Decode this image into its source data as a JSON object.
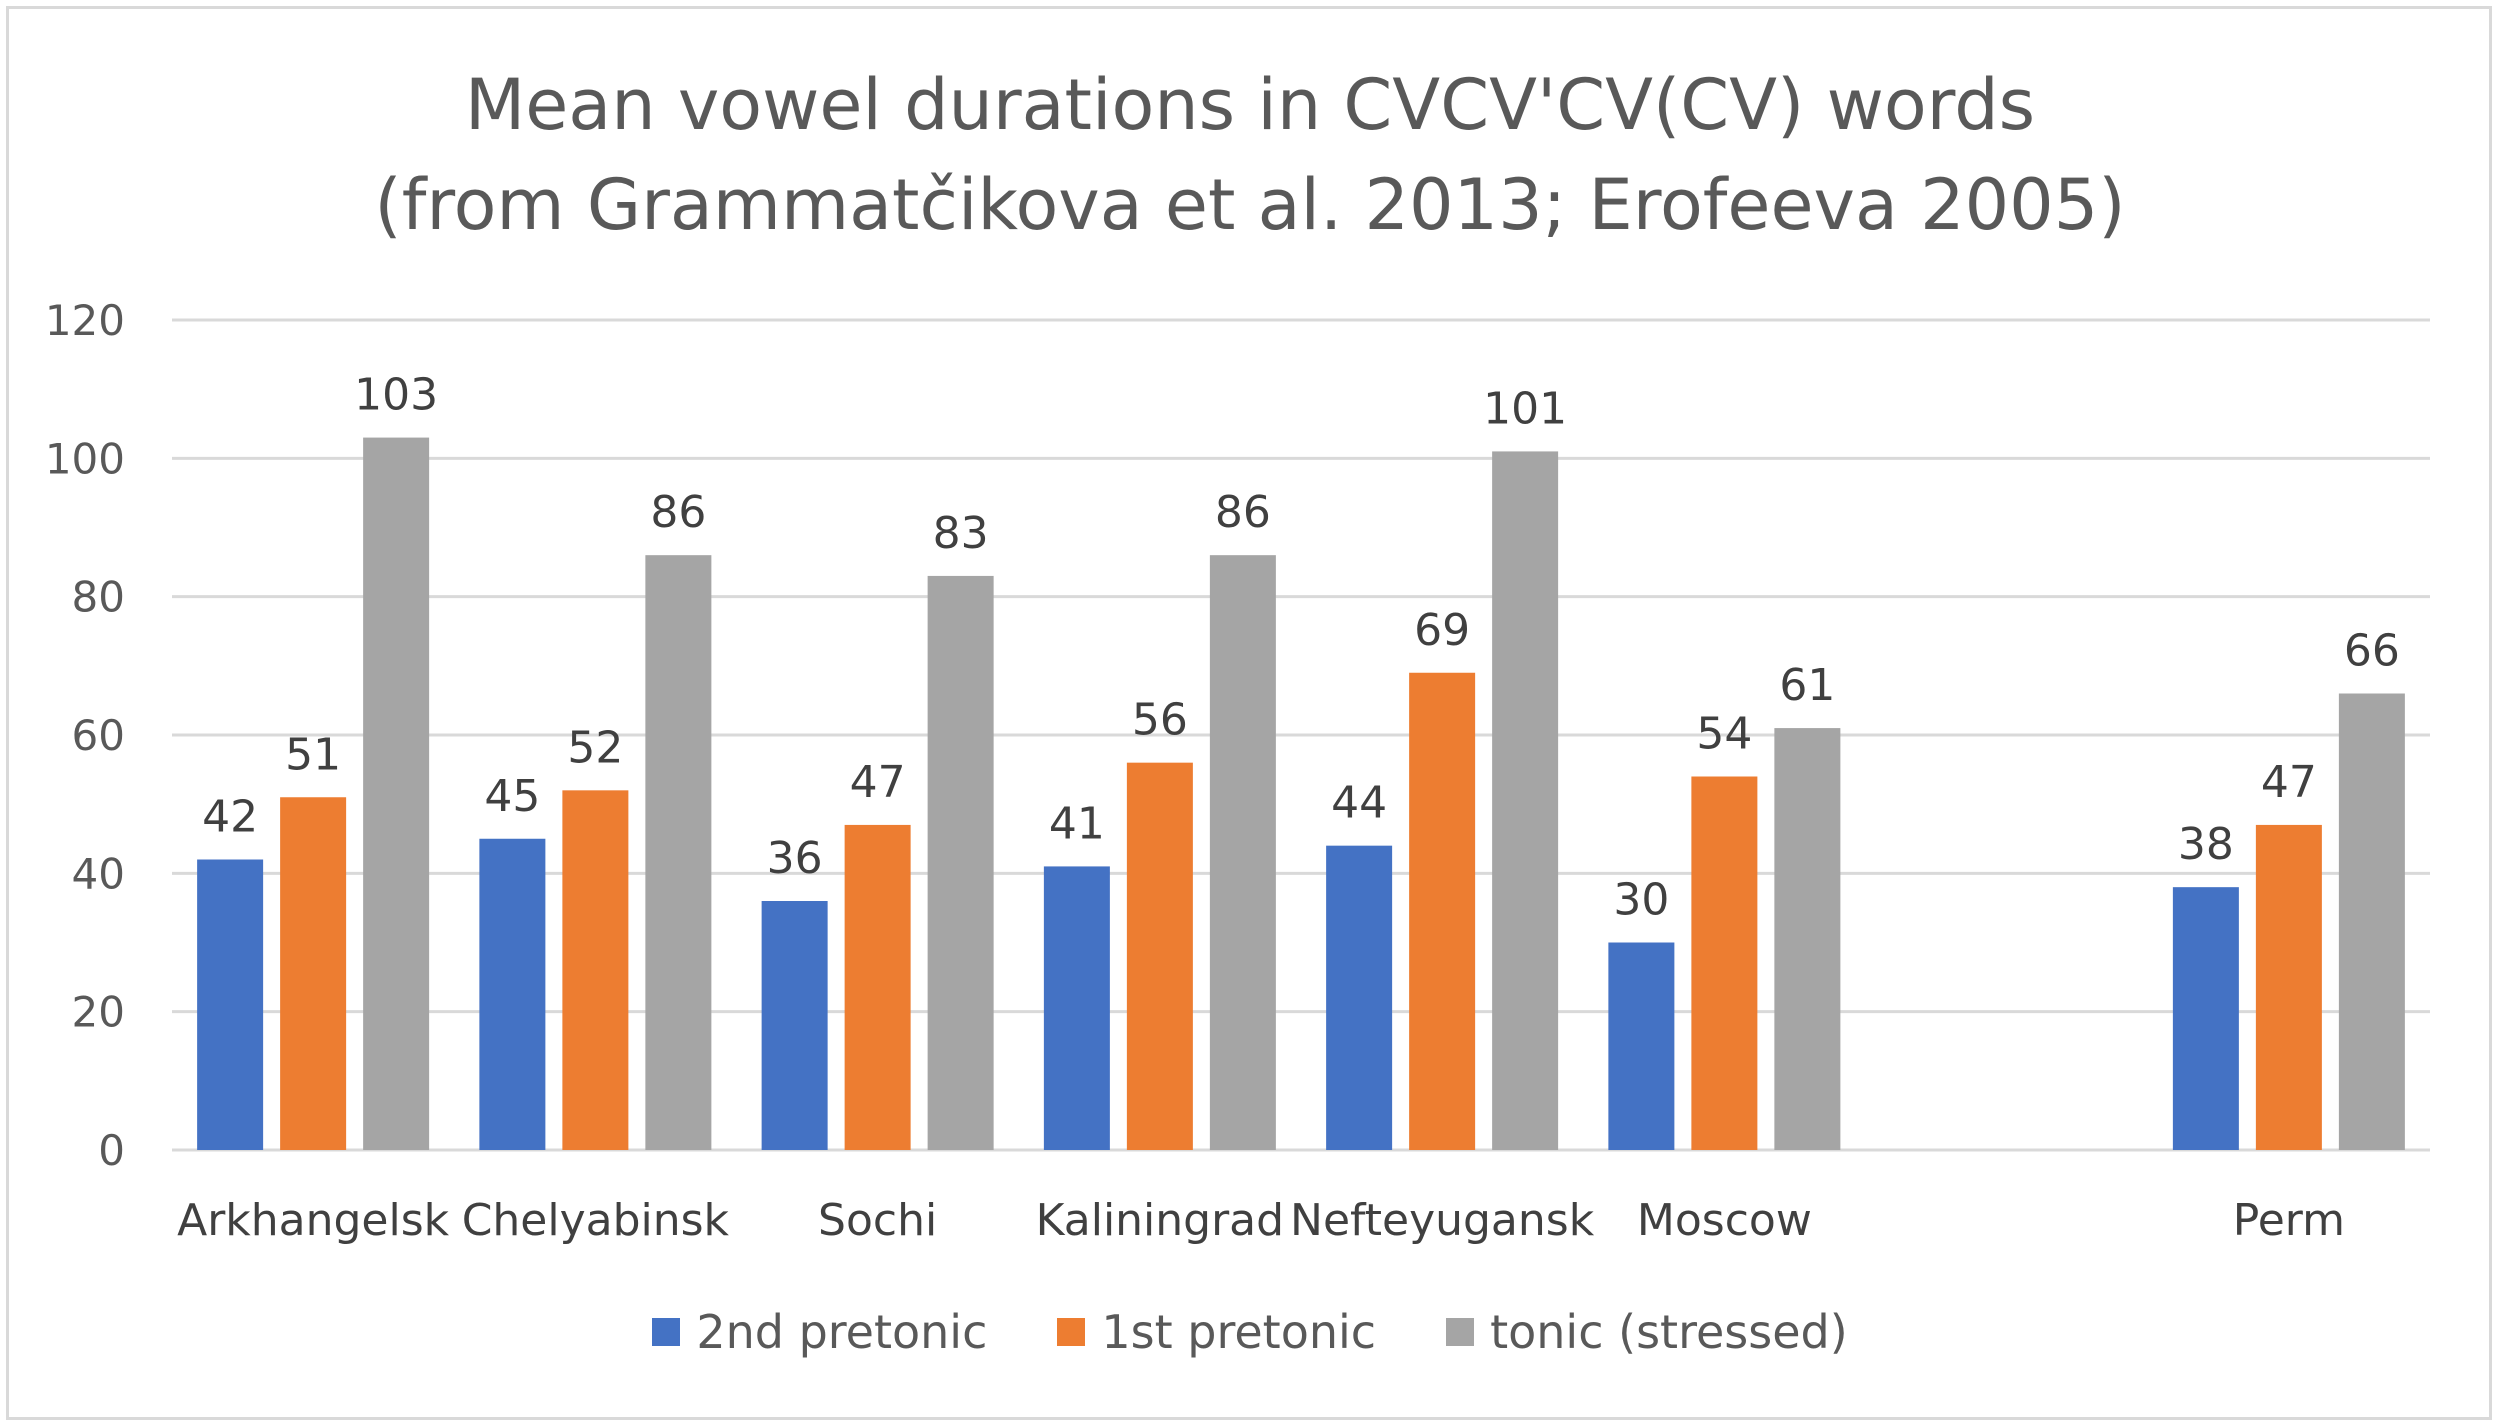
{
  "chart_data": {
    "type": "bar",
    "title": "Mean vowel durations in CVCV'CV(CV) words",
    "subtitle": "(from Grammatčikova et al. 2013; Erofeeva 2005)",
    "categories": [
      "Arkhangelsk",
      "Chelyabinsk",
      "Sochi",
      "Kaliningrad",
      "Nefteyugansk",
      "Moscow",
      "",
      "Perm"
    ],
    "series": [
      {
        "name": "2nd pretonic",
        "color": "#4472c4",
        "values": [
          42,
          45,
          36,
          41,
          44,
          30,
          null,
          38
        ]
      },
      {
        "name": "1st pretonic",
        "color": "#ed7d31",
        "values": [
          51,
          52,
          47,
          56,
          69,
          54,
          null,
          47
        ]
      },
      {
        "name": "tonic (stressed)",
        "color": "#a5a5a5",
        "values": [
          103,
          86,
          83,
          86,
          101,
          61,
          null,
          66
        ]
      }
    ],
    "ylim": [
      0,
      120
    ],
    "yticks": [
      "0",
      "20",
      "40",
      "60",
      "80",
      "100",
      "120"
    ],
    "grid": true,
    "legend_position": "bottom",
    "data_labels": true
  }
}
